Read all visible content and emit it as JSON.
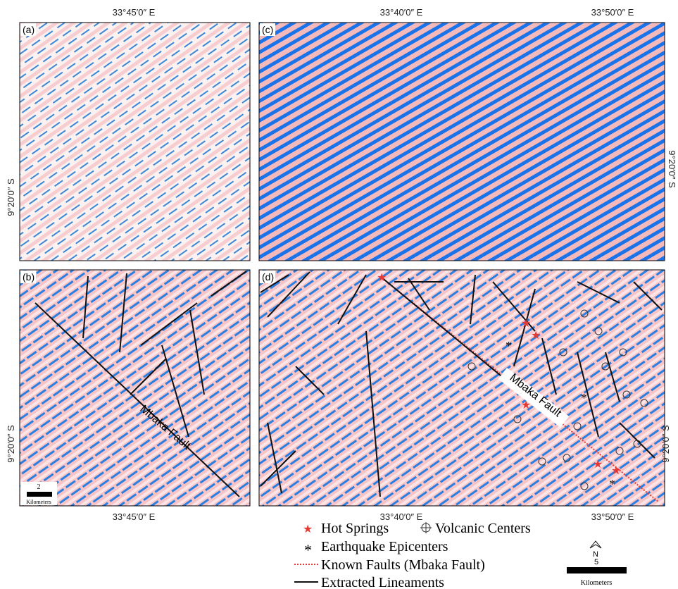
{
  "panels": [
    {
      "label": "(a)"
    },
    {
      "label": "(b)"
    },
    {
      "label": "(c)"
    },
    {
      "label": "(d)"
    }
  ],
  "coordinates": {
    "top_a": "33°45′0″ E",
    "top_c_left": "33°40′0″ E",
    "top_c_right": "33°50′0″ E",
    "left_a": "9°20′0″ S",
    "left_b": "9°20′0″ S",
    "right_c": "9°20′0″ S",
    "right_d": "9°20′0″ S",
    "bottom_b": "33°45′0″ E",
    "bottom_d_left": "33°40′0″ E",
    "bottom_d_right": "33°50′0″ E"
  },
  "annotations": {
    "fault_b": "Mbaka Fault",
    "fault_d": "Mbaka Fault"
  },
  "scale_small": {
    "value": "2",
    "unit": "Kilometers"
  },
  "scale_large": {
    "value": "5",
    "unit": "Kilometers"
  },
  "north": "N",
  "legend": [
    "Hot Springs",
    "Volcanic Centers",
    "Earthquake Epicenters",
    "Known Faults (Mbaka Fault)",
    "Extracted Lineaments"
  ]
}
